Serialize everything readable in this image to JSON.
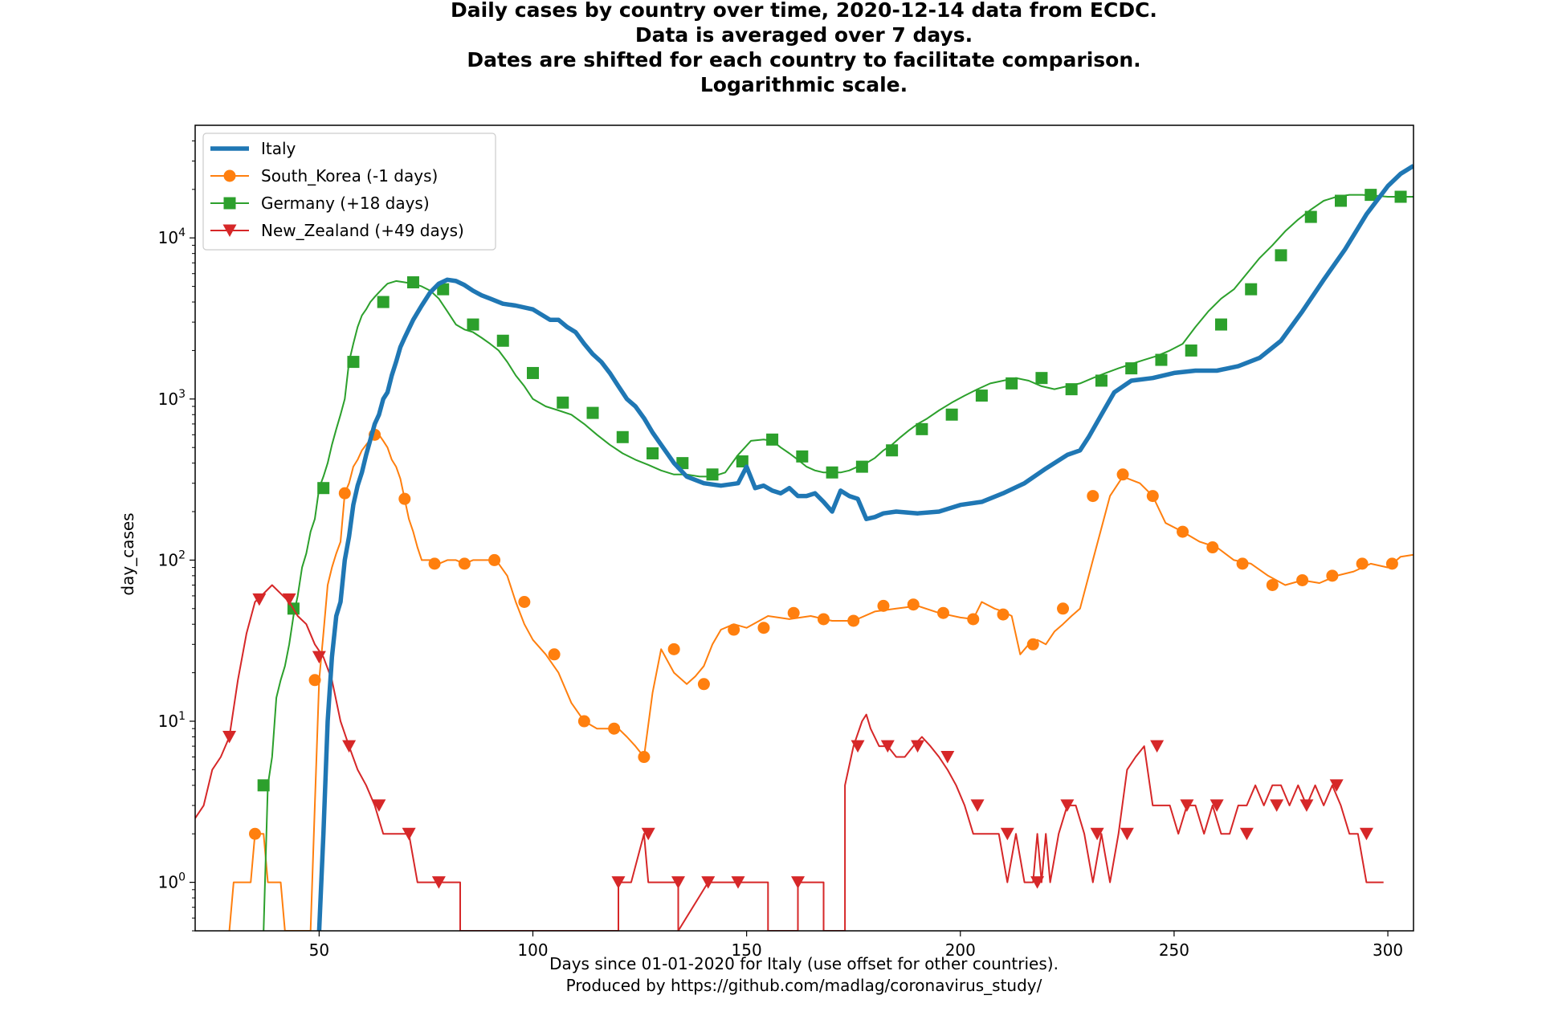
{
  "chart_data": {
    "type": "line",
    "title_lines": [
      "Daily cases by country over time, 2020-12-14 data from ECDC.",
      "Data is averaged over 7 days.",
      "Dates are shifted for each country to facilitate comparison.",
      "Logarithmic scale."
    ],
    "xlabel_lines": [
      "Days since 01-01-2020 for Italy (use offset for other countries).",
      "Produced by https://github.com/madlag/coronavirus_study/"
    ],
    "ylabel": "day_cases",
    "xlim": [
      21,
      306
    ],
    "ylim": [
      0.5,
      50000
    ],
    "yscale": "log",
    "x_ticks": [
      50,
      100,
      150,
      200,
      250,
      300
    ],
    "y_ticks": [
      {
        "value": 1,
        "base": "10",
        "exp": "0"
      },
      {
        "value": 10,
        "base": "10",
        "exp": "1"
      },
      {
        "value": 100,
        "base": "10",
        "exp": "2"
      },
      {
        "value": 1000,
        "base": "10",
        "exp": "3"
      },
      {
        "value": 10000,
        "base": "10",
        "exp": "4"
      }
    ],
    "legend_position": "upper-left",
    "series": [
      {
        "name": "Italy",
        "color": "#1f77b4",
        "marker": "none",
        "x": [
          50,
          51,
          52,
          53,
          54,
          55,
          56,
          57,
          58,
          59,
          60,
          61,
          62,
          63,
          64,
          65,
          66,
          67,
          68,
          69,
          70,
          72,
          74,
          76,
          78,
          80,
          82,
          84,
          86,
          88,
          90,
          93,
          96,
          100,
          104,
          106,
          108,
          110,
          112,
          114,
          116,
          118,
          120,
          122,
          124,
          126,
          128,
          130,
          133,
          136,
          140,
          144,
          148,
          150,
          152,
          154,
          156,
          158,
          160,
          162,
          164,
          166,
          168,
          170,
          172,
          174,
          176,
          178,
          180,
          182,
          185,
          190,
          195,
          200,
          205,
          210,
          215,
          220,
          225,
          228,
          230,
          233,
          236,
          240,
          245,
          250,
          255,
          260,
          265,
          270,
          275,
          280,
          285,
          290,
          295,
          300,
          303,
          306
        ],
        "y": [
          0.5,
          2,
          10,
          25,
          45,
          55,
          100,
          140,
          220,
          290,
          350,
          450,
          560,
          700,
          800,
          1000,
          1100,
          1400,
          1700,
          2100,
          2400,
          3100,
          3800,
          4600,
          5200,
          5500,
          5400,
          5100,
          4700,
          4400,
          4200,
          3900,
          3800,
          3600,
          3100,
          3100,
          2800,
          2600,
          2200,
          1900,
          1700,
          1450,
          1200,
          1000,
          900,
          760,
          620,
          520,
          400,
          330,
          300,
          290,
          300,
          380,
          280,
          290,
          270,
          260,
          280,
          250,
          250,
          260,
          230,
          200,
          270,
          250,
          240,
          180,
          185,
          195,
          200,
          195,
          200,
          220,
          230,
          260,
          300,
          370,
          450,
          480,
          580,
          800,
          1100,
          1300,
          1350,
          1450,
          1500,
          1500,
          1600,
          1800,
          2300,
          3500,
          5500,
          8500,
          14000,
          21000,
          25000,
          28000
        ]
      },
      {
        "name": "South_Korea (-1 days)",
        "color": "#ff7f0e",
        "marker": "circle",
        "x": [
          29,
          30,
          31,
          32,
          33,
          34,
          35,
          36,
          37,
          38,
          39,
          40,
          41,
          42,
          43,
          44,
          45,
          46,
          47,
          48,
          49,
          50,
          51,
          52,
          53,
          54,
          55,
          56,
          57,
          58,
          59,
          60,
          61,
          62,
          63,
          64,
          65,
          66,
          67,
          68,
          69,
          70,
          71,
          72,
          73,
          74,
          75,
          76,
          77,
          78,
          80,
          82,
          84,
          86,
          88,
          90,
          92,
          94,
          96,
          98,
          100,
          103,
          106,
          109,
          112,
          115,
          118,
          120,
          122,
          124,
          126,
          128,
          130,
          133,
          136,
          138,
          140,
          142,
          144,
          147,
          150,
          155,
          160,
          165,
          170,
          175,
          180,
          185,
          190,
          195,
          200,
          203,
          205,
          208,
          210,
          212,
          214,
          216,
          218,
          220,
          222,
          224,
          226,
          228,
          231,
          235,
          238,
          242,
          245,
          248,
          252,
          256,
          260,
          264,
          268,
          272,
          276,
          280,
          284,
          288,
          292,
          296,
          300,
          303,
          306
        ],
        "y": [
          0.5,
          1,
          1,
          1,
          1,
          1,
          2,
          2,
          2,
          1,
          1,
          1,
          1,
          0.5,
          0.5,
          0.5,
          0.5,
          0.5,
          0.5,
          0.5,
          3,
          18,
          35,
          70,
          90,
          110,
          130,
          260,
          300,
          380,
          420,
          480,
          520,
          560,
          600,
          600,
          550,
          500,
          420,
          380,
          320,
          240,
          180,
          150,
          120,
          100,
          100,
          100,
          98,
          95,
          100,
          100,
          95,
          100,
          100,
          100,
          95,
          80,
          55,
          40,
          32,
          26,
          20,
          13,
          10,
          9,
          9,
          9,
          8,
          7,
          6,
          15,
          28,
          20,
          17,
          19,
          22,
          30,
          37,
          40,
          38,
          45,
          43,
          45,
          42,
          42,
          48,
          50,
          52,
          47,
          44,
          43,
          55,
          50,
          48,
          45,
          26,
          30,
          32,
          30,
          36,
          40,
          45,
          50,
          100,
          250,
          330,
          300,
          250,
          170,
          150,
          130,
          120,
          100,
          95,
          80,
          70,
          75,
          72,
          80,
          85,
          95,
          90,
          105,
          108
        ]
      },
      {
        "name": "Germany (+18 days)",
        "color": "#2ca02c",
        "marker": "square",
        "x": [
          37,
          38,
          39,
          40,
          41,
          42,
          43,
          44,
          45,
          46,
          47,
          48,
          49,
          50,
          51,
          52,
          53,
          54,
          55,
          56,
          57,
          58,
          59,
          60,
          61,
          62,
          63,
          64,
          65,
          66,
          68,
          70,
          72,
          74,
          76,
          78,
          80,
          82,
          84,
          86,
          88,
          90,
          92,
          94,
          96,
          98,
          100,
          103,
          106,
          109,
          112,
          115,
          118,
          121,
          124,
          127,
          130,
          133,
          136,
          139,
          142,
          145,
          148,
          151,
          154,
          156,
          158,
          160,
          162,
          164,
          166,
          168,
          170,
          172,
          174,
          176,
          178,
          180,
          182,
          184,
          186,
          188,
          190,
          192,
          195,
          198,
          201,
          204,
          207,
          210,
          213,
          216,
          219,
          222,
          225,
          228,
          231,
          234,
          237,
          240,
          243,
          246,
          249,
          252,
          255,
          258,
          261,
          264,
          267,
          270,
          273,
          276,
          279,
          282,
          285,
          288,
          291,
          294,
          297,
          300,
          303,
          306
        ],
        "y": [
          0.5,
          4,
          6,
          14,
          18,
          22,
          30,
          45,
          60,
          90,
          110,
          150,
          180,
          280,
          330,
          400,
          520,
          650,
          800,
          1000,
          1700,
          2200,
          2800,
          3300,
          3600,
          4000,
          4300,
          4600,
          4900,
          5200,
          5400,
          5300,
          5200,
          5000,
          4700,
          4200,
          3500,
          2900,
          2700,
          2600,
          2400,
          2200,
          2000,
          1700,
          1400,
          1200,
          1000,
          900,
          850,
          800,
          700,
          600,
          520,
          460,
          420,
          390,
          360,
          340,
          340,
          330,
          330,
          350,
          450,
          550,
          560,
          550,
          500,
          460,
          420,
          380,
          360,
          350,
          350,
          350,
          360,
          380,
          400,
          430,
          480,
          520,
          580,
          640,
          700,
          750,
          850,
          950,
          1050,
          1150,
          1250,
          1300,
          1350,
          1300,
          1200,
          1150,
          1200,
          1250,
          1350,
          1450,
          1550,
          1650,
          1750,
          1850,
          2000,
          2200,
          2800,
          3500,
          4200,
          4800,
          6000,
          7500,
          9000,
          11000,
          13000,
          15000,
          17000,
          18000,
          18500,
          18500,
          18300,
          18000,
          18000,
          18000
        ]
      },
      {
        "name": "New_Zealand (+49 days)",
        "color": "#d62728",
        "marker": "triangle-down",
        "x": [
          21,
          23,
          25,
          27,
          29,
          31,
          33,
          35,
          37,
          39,
          41,
          43,
          45,
          47,
          49,
          51,
          53,
          55,
          57,
          59,
          61,
          63,
          65,
          67,
          69,
          71,
          73,
          75,
          77,
          79,
          81,
          83,
          83,
          120,
          120,
          123,
          126,
          127,
          128,
          130,
          134,
          134,
          141,
          148,
          155,
          155,
          162,
          162,
          168,
          168,
          173,
          173,
          175,
          177,
          178,
          179,
          181,
          183,
          185,
          187,
          189,
          191,
          193,
          195,
          197,
          199,
          201,
          203,
          205,
          207,
          209,
          211,
          213,
          215,
          217,
          218,
          219,
          220,
          221,
          223,
          225,
          227,
          229,
          231,
          233,
          235,
          237,
          239,
          241,
          243,
          245,
          247,
          249,
          251,
          253,
          255,
          257,
          259,
          261,
          263,
          265,
          267,
          269,
          271,
          273,
          275,
          277,
          279,
          281,
          283,
          285,
          287,
          289,
          291,
          293,
          295,
          297,
          299
        ],
        "y": [
          2.5,
          3,
          5,
          6,
          8,
          18,
          35,
          55,
          62,
          70,
          62,
          55,
          45,
          40,
          30,
          25,
          18,
          10,
          7,
          5,
          4,
          3,
          2,
          2,
          2,
          2,
          1,
          1,
          1,
          1,
          1,
          1,
          0.5,
          0.5,
          1,
          1,
          2,
          1,
          1,
          1,
          1,
          0.5,
          1,
          1,
          1,
          0.5,
          0.5,
          1,
          1,
          0.5,
          0.5,
          4,
          7,
          10,
          11,
          9,
          7,
          7,
          6,
          6,
          7,
          8,
          7,
          6,
          5,
          4,
          3,
          2,
          2,
          2,
          2,
          1,
          2,
          1,
          1,
          2,
          1,
          2,
          1,
          2,
          3,
          3,
          2,
          1,
          2,
          1,
          2,
          5,
          6,
          7,
          3,
          3,
          3,
          2,
          3,
          3,
          2,
          3,
          2,
          2,
          3,
          3,
          4,
          3,
          4,
          4,
          3,
          4,
          3,
          4,
          3,
          4,
          3,
          2,
          2,
          1,
          1,
          1
        ]
      }
    ],
    "marker_points": [
      {
        "x": [],
        "y": []
      },
      {
        "x": [
          35,
          49,
          56,
          63,
          70,
          77,
          84,
          91,
          98,
          105,
          112,
          119,
          126,
          133,
          140,
          147,
          154,
          161,
          168,
          175,
          182,
          189,
          196,
          203,
          210,
          217,
          224,
          231,
          238,
          245,
          252,
          259,
          266,
          273,
          280,
          287,
          294,
          301
        ],
        "y": [
          2,
          18,
          260,
          600,
          240,
          95,
          95,
          100,
          55,
          26,
          10,
          9,
          6,
          28,
          17,
          37,
          38,
          47,
          43,
          42,
          52,
          53,
          47,
          43,
          46,
          30,
          50,
          250,
          340,
          250,
          150,
          120,
          95,
          70,
          75,
          80,
          95,
          95
        ]
      },
      {
        "x": [
          37,
          44,
          51,
          58,
          65,
          72,
          79,
          86,
          93,
          100,
          107,
          114,
          121,
          128,
          135,
          142,
          149,
          156,
          163,
          170,
          177,
          184,
          191,
          198,
          205,
          212,
          219,
          226,
          233,
          240,
          247,
          254,
          261,
          268,
          275,
          282,
          289,
          296,
          303
        ],
        "y": [
          4,
          50,
          280,
          1700,
          4000,
          5300,
          4800,
          2900,
          2300,
          1450,
          950,
          820,
          580,
          460,
          400,
          340,
          410,
          560,
          440,
          350,
          380,
          480,
          650,
          800,
          1050,
          1250,
          1350,
          1150,
          1300,
          1550,
          1750,
          2000,
          2900,
          4800,
          7800,
          13500,
          17000,
          18500,
          18000
        ]
      },
      {
        "x": [
          29,
          36,
          43,
          50,
          57,
          64,
          71,
          78,
          120,
          127,
          134,
          141,
          148,
          162,
          176,
          183,
          190,
          197,
          204,
          211,
          218,
          225,
          232,
          239,
          246,
          253,
          260,
          267,
          274,
          281,
          288,
          295
        ],
        "y": [
          8,
          57,
          57,
          25,
          7,
          3,
          2,
          1,
          1,
          2,
          1,
          1,
          1,
          1,
          7,
          7,
          7,
          6,
          3,
          2,
          1,
          3,
          2,
          2,
          7,
          3,
          3,
          2,
          3,
          3,
          4,
          2
        ]
      }
    ]
  }
}
